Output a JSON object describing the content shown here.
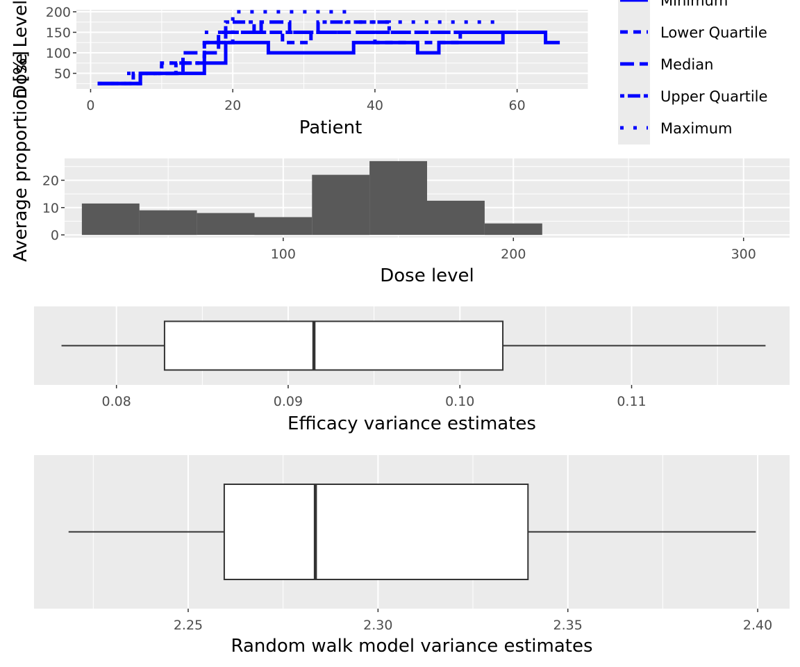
{
  "chart_data": [
    {
      "type": "line",
      "xlabel": "Patient",
      "ylabel": "Dose Level",
      "xlim": [
        -2,
        70
      ],
      "ylim": [
        12,
        205
      ],
      "x_ticks": [
        0,
        20,
        40,
        60
      ],
      "y_ticks": [
        50,
        100,
        150,
        200
      ],
      "legend_position": "right",
      "color": "#0000ff",
      "series": [
        {
          "name": "Minimum",
          "linetype": "solid",
          "x": [
            1,
            7,
            7,
            16,
            16,
            19,
            19,
            25,
            25,
            37,
            37,
            46,
            46,
            49,
            49,
            58,
            58,
            64,
            64,
            66
          ],
          "y": [
            25,
            25,
            50,
            50,
            75,
            75,
            125,
            125,
            100,
            100,
            125,
            125,
            100,
            100,
            125,
            125,
            150,
            150,
            125,
            125
          ]
        },
        {
          "name": "Lower Quartile",
          "linetype": "dashed",
          "x": [
            1,
            6,
            6,
            10,
            10,
            16,
            16,
            20,
            20,
            27,
            27,
            31,
            31,
            40,
            40,
            52,
            52,
            58
          ],
          "y": [
            25,
            25,
            50,
            50,
            75,
            75,
            125,
            125,
            150,
            150,
            125,
            125,
            150,
            150,
            125,
            125,
            150,
            150
          ]
        },
        {
          "name": "Median",
          "linetype": "longdash",
          "x": [
            1,
            7,
            7,
            13,
            13,
            18,
            18,
            24,
            24,
            28,
            28,
            35,
            35,
            45,
            45,
            58
          ],
          "y": [
            25,
            25,
            50,
            50,
            100,
            100,
            150,
            150,
            175,
            175,
            150,
            150,
            150,
            150,
            150,
            150
          ]
        },
        {
          "name": "Upper Quartile",
          "linetype": "twodash",
          "x": [
            1,
            7,
            7,
            12,
            12,
            16,
            16,
            19,
            19,
            23,
            23,
            32,
            32,
            42,
            42,
            58
          ],
          "y": [
            25,
            25,
            50,
            50,
            75,
            75,
            125,
            125,
            175,
            175,
            150,
            150,
            175,
            175,
            150,
            150
          ]
        },
        {
          "name": "Maximum",
          "linetype": "dotted",
          "x": [
            1,
            5,
            5,
            10,
            10,
            16,
            16,
            20,
            20,
            36,
            36,
            44,
            44,
            58
          ],
          "y": [
            25,
            25,
            50,
            50,
            75,
            75,
            150,
            150,
            200,
            200,
            175,
            175,
            175,
            175
          ]
        }
      ]
    },
    {
      "type": "bar",
      "xlabel": "Dose level",
      "ylabel": "Average proportion [%]",
      "xlim": [
        5,
        320
      ],
      "ylim": [
        -1,
        28
      ],
      "x_ticks": [
        100,
        200,
        300
      ],
      "y_ticks": [
        0,
        10,
        20
      ],
      "x": [
        25,
        50,
        75,
        100,
        125,
        150,
        175,
        200
      ],
      "values": [
        11.5,
        9,
        8,
        6.5,
        22,
        27,
        12.5,
        4.2
      ]
    },
    {
      "type": "boxplot",
      "xlabel": "Efficacy variance estimates",
      "xlim": [
        0.0752,
        0.1192
      ],
      "x_ticks": [
        0.08,
        0.09,
        0.1,
        0.11
      ],
      "x_tick_labels": [
        "0.08",
        "0.09",
        "0.10",
        "0.11"
      ],
      "whisker_low": 0.0768,
      "q1": 0.0828,
      "median": 0.0915,
      "q3": 0.1025,
      "whisker_high": 0.1178
    },
    {
      "type": "boxplot",
      "xlabel": "Random walk model variance estimates",
      "xlim": [
        2.2094,
        2.4084
      ],
      "x_ticks": [
        2.25,
        2.3,
        2.35,
        2.4
      ],
      "x_tick_labels": [
        "2.25",
        "2.30",
        "2.35",
        "2.40"
      ],
      "whisker_low": 2.2185,
      "q1": 2.2595,
      "median": 2.2835,
      "q3": 2.3395,
      "whisker_high": 2.3995
    }
  ]
}
